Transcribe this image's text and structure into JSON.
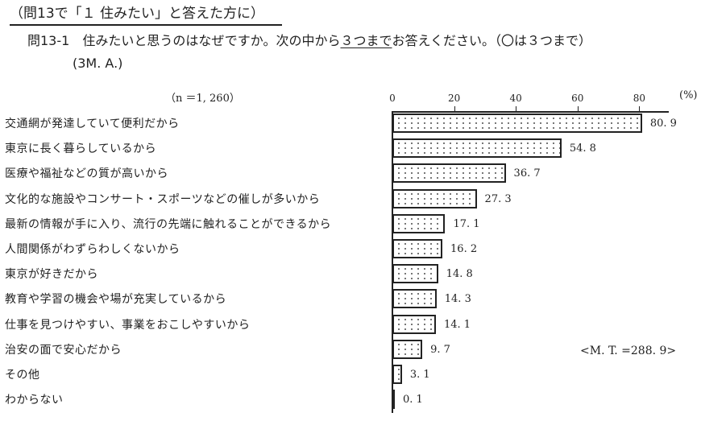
{
  "header": {
    "section": "（問13で「１ 住みたい」と答えた方に）",
    "question_prefix": "問13-1　住みたいと思うのはなぜですか。次の中から",
    "question_underlined": "３つまで",
    "question_suffix": "お答えください。（〇は３つまで）",
    "answer_type": "(3M. A.)"
  },
  "sample": "（n ＝1, 260）",
  "total": "<M. T. =288. 9>",
  "chart_data": {
    "type": "bar",
    "orientation": "horizontal",
    "title": "住みたいと思うのはなぜですか（３つまで）",
    "xlabel": "(%)",
    "ylabel": "",
    "xlim": [
      0,
      90
    ],
    "xticks": [
      0,
      20,
      40,
      60,
      80
    ],
    "grid": false,
    "legend": null,
    "n": 1260,
    "mt": 288.9,
    "categories": [
      "交通網が発達していて便利だから",
      "東京に長く暮らしているから",
      "医療や福祉などの質が高いから",
      "文化的な施設やコンサート・スポーツなどの催しが多いから",
      "最新の情報が手に入り、流行の先端に触れることができるから",
      "人間関係がわずらわしくないから",
      "東京が好きだから",
      "教育や学習の機会や場が充実しているから",
      "仕事を見つけやすい、事業をおこしやすいから",
      "治安の面で安心だから",
      "その他",
      "わからない"
    ],
    "values": [
      80.9,
      54.8,
      36.7,
      27.3,
      17.1,
      16.2,
      14.8,
      14.3,
      14.1,
      9.7,
      3.1,
      0.1
    ],
    "value_labels": [
      "80. 9",
      "54. 8",
      "36. 7",
      "27. 3",
      "17. 1",
      "16. 2",
      "14. 8",
      "14. 3",
      "14. 1",
      "9. 7",
      "3. 1",
      "0. 1"
    ],
    "tick_labels": [
      "0",
      "20",
      "40",
      "60",
      "80"
    ],
    "unit_label": "(%)"
  }
}
